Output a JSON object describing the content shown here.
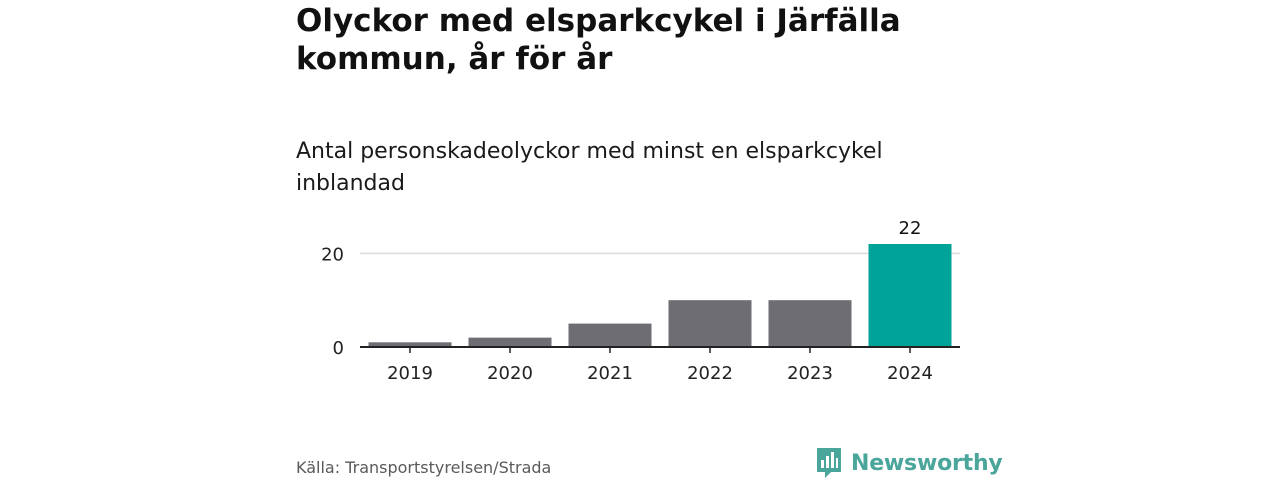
{
  "title": "Olyckor med elsparkcykel i Järfälla kommun, år för år",
  "subtitle": "Antal personskadeolyckor med minst en elsparkcykel inblandad",
  "source": "Källa: Transportstyrelsen/Strada",
  "brand": {
    "name": "Newsworthy",
    "color": "#4aa59b",
    "icon": "newsworthy-logo-icon"
  },
  "chart_data": {
    "type": "bar",
    "title": "Olyckor med elsparkcykel i Järfälla kommun, år för år",
    "subtitle": "Antal personskadeolyckor med minst en elsparkcykel inblandad",
    "xlabel": "",
    "ylabel": "",
    "categories": [
      "2019",
      "2020",
      "2021",
      "2022",
      "2023",
      "2024"
    ],
    "values": [
      1,
      2,
      5,
      10,
      10,
      22
    ],
    "data_labels": [
      "",
      "",
      "",
      "",
      "",
      "22"
    ],
    "ylim": [
      0,
      22
    ],
    "yticks": [
      0,
      20
    ],
    "grid": true,
    "legend": "none",
    "colors": {
      "default": "#6e6d73",
      "highlight": "#00a398",
      "highlight_index": 5,
      "gridline": "#dcdcdc",
      "axis": "#222222"
    }
  }
}
